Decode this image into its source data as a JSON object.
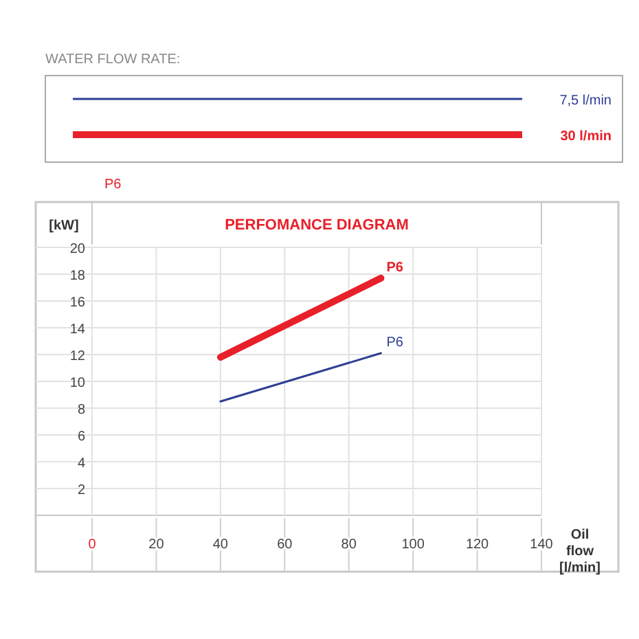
{
  "chart_data": {
    "type": "line",
    "title": "PERFOMANCE DIAGRAM",
    "xlabel": "Oil flow [l/min]",
    "ylabel": "[kW]",
    "legend_title": "WATER FLOW RATE:",
    "legend": "top",
    "grid": true,
    "marker": "none",
    "line_style": "solid",
    "x": [
      40,
      90
    ],
    "series": [
      {
        "name": "7,5 l/min",
        "color": "#2e3f95",
        "values": [
          8.5,
          12.1
        ]
      },
      {
        "name": "30 l/min",
        "color": "#e8202a",
        "values": [
          11.8,
          17.7
        ]
      }
    ],
    "xlim": [
      0,
      140
    ],
    "xticks": [
      0,
      20,
      40,
      60,
      80,
      100,
      120,
      140
    ],
    "ylim": [
      0,
      20
    ],
    "yticks": [
      2,
      4,
      6,
      8,
      10,
      12,
      14,
      16,
      18,
      20
    ],
    "annotations": [
      "P6",
      {
        "text": "P6",
        "x": 90,
        "y": 17.7
      },
      {
        "text": "P6",
        "x": 90,
        "y": 12.1
      }
    ]
  }
}
